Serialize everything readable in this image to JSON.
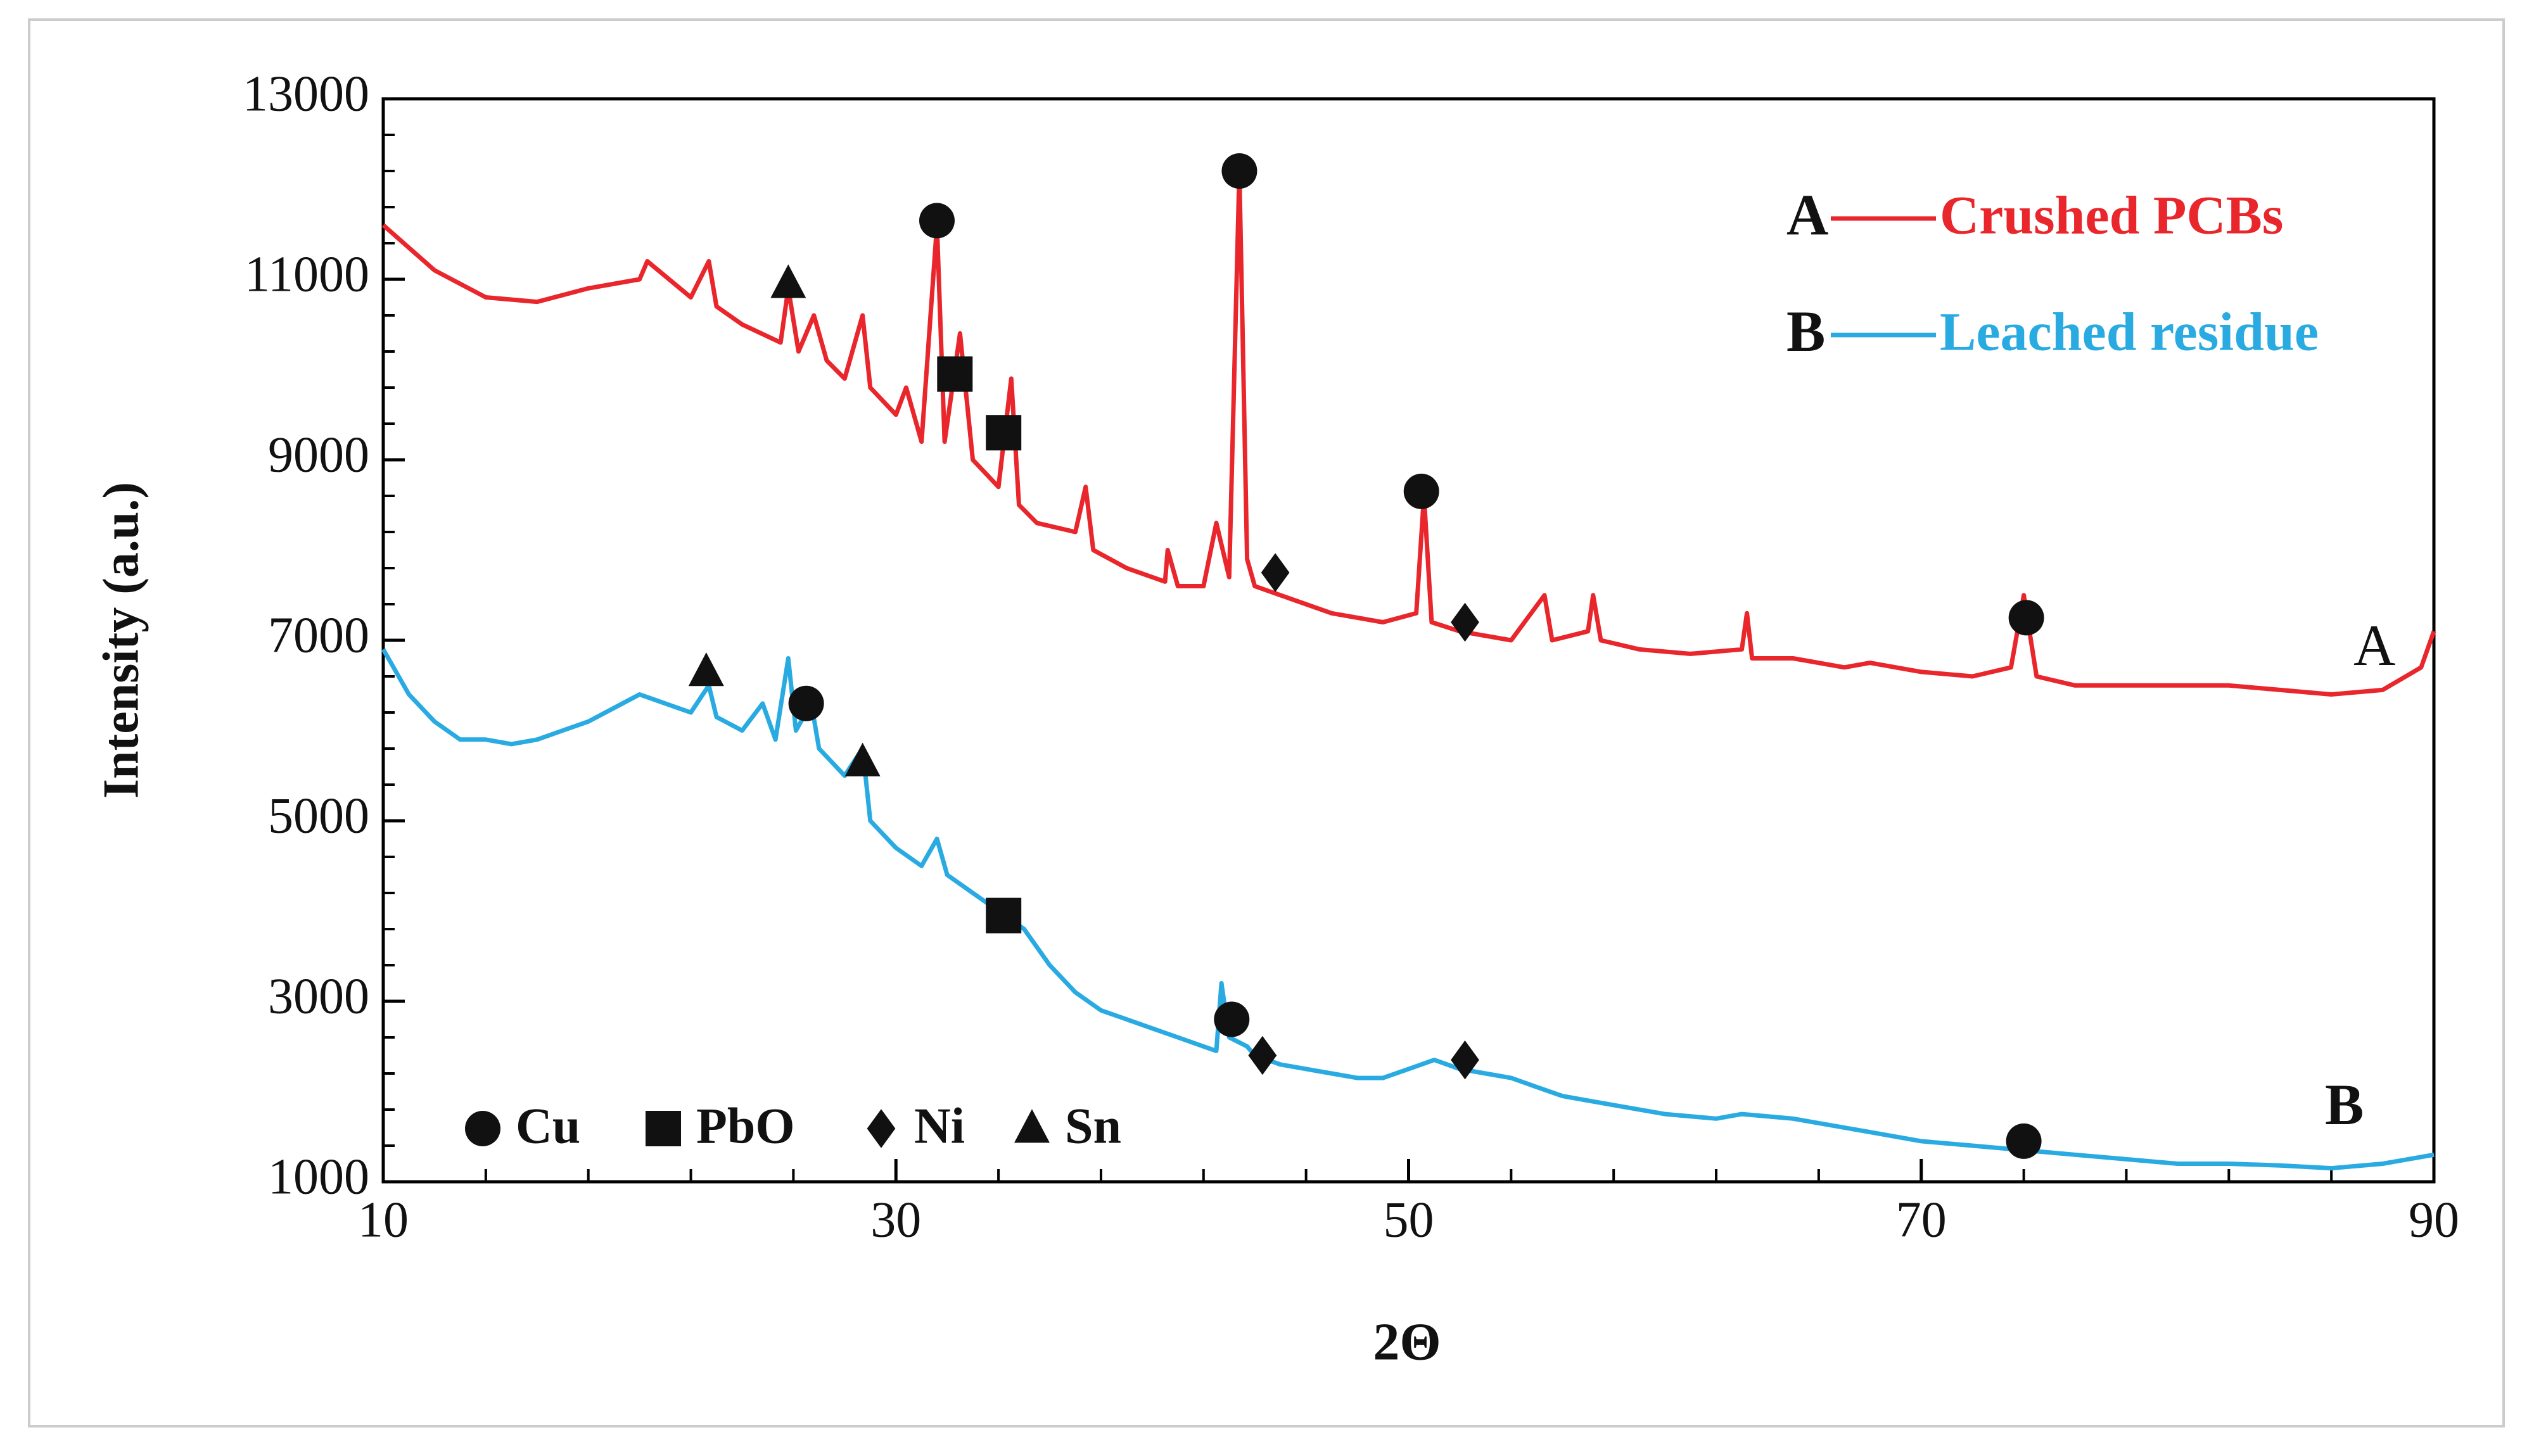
{
  "chart_data": {
    "type": "line",
    "x_label": "2Θ",
    "y_label": "Intensity (a.u.)",
    "xlim": [
      10,
      90
    ],
    "xticks": [
      10,
      30,
      50,
      70,
      90
    ],
    "x_minor_step": 4,
    "ylim": [
      1000,
      13000
    ],
    "yticks": [
      1000,
      3000,
      5000,
      7000,
      9000,
      11000,
      13000
    ],
    "y_minor_step": 400,
    "series": [
      {
        "name": "Crushed PCBs",
        "label": "A",
        "color": "#e8262b",
        "x": [
          10,
          12,
          14,
          16,
          18,
          20,
          20.3,
          22,
          22.7,
          23,
          24,
          25.5,
          25.8,
          26.2,
          26.8,
          27.3,
          28,
          28.7,
          29,
          30,
          30.4,
          31,
          31.6,
          31.9,
          32.5,
          33,
          34,
          34.5,
          34.8,
          35.5,
          37,
          37.4,
          37.7,
          39,
          40.5,
          40.6,
          41,
          42,
          42.5,
          43,
          43.4,
          43.7,
          44,
          45,
          47,
          49,
          50.3,
          50.6,
          50.9,
          52,
          54,
          55.3,
          55.6,
          57,
          57.2,
          57.5,
          59,
          61,
          63,
          63.2,
          63.4,
          65,
          67,
          68,
          70,
          72,
          73.5,
          74,
          74.5,
          76,
          78,
          80,
          82,
          84,
          86,
          88,
          89.5,
          90
        ],
        "values": [
          11600,
          11100,
          10800,
          10750,
          10900,
          11000,
          11200,
          10800,
          11200,
          10700,
          10500,
          10300,
          10900,
          10200,
          10600,
          10100,
          9900,
          10600,
          9800,
          9500,
          9800,
          9200,
          11600,
          9200,
          10400,
          9000,
          8700,
          9900,
          8500,
          8300,
          8200,
          8700,
          8000,
          7800,
          7650,
          8000,
          7600,
          7600,
          8300,
          7700,
          12200,
          7900,
          7600,
          7500,
          7300,
          7200,
          7300,
          8600,
          7200,
          7100,
          7000,
          7500,
          7000,
          7100,
          7500,
          7000,
          6900,
          6850,
          6900,
          7300,
          6800,
          6800,
          6700,
          6750,
          6650,
          6600,
          6700,
          7500,
          6600,
          6500,
          6500,
          6500,
          6500,
          6450,
          6400,
          6450,
          6700,
          7100
        ]
      },
      {
        "name": "Leached residue",
        "label": "B",
        "color": "#29abe2",
        "x": [
          10,
          11,
          12,
          13,
          14,
          15,
          16,
          17,
          18,
          19,
          20,
          21,
          22,
          22.7,
          23,
          24,
          24.8,
          25.3,
          25.8,
          26.1,
          26.7,
          27,
          28,
          28.7,
          29,
          30,
          31,
          31.6,
          32,
          33,
          34,
          35,
          36,
          37,
          38,
          39,
          40,
          41,
          42,
          42.5,
          42.7,
          43,
          43.7,
          44,
          45,
          46,
          47,
          48,
          49,
          50,
          51,
          52,
          53,
          54,
          55,
          56,
          57,
          58,
          60,
          62,
          63,
          65,
          66,
          68,
          70,
          72,
          74,
          76,
          78,
          80,
          82,
          84,
          86,
          88,
          90
        ],
        "values": [
          6900,
          6400,
          6100,
          5900,
          5900,
          5850,
          5900,
          6000,
          6100,
          6250,
          6400,
          6300,
          6200,
          6500,
          6150,
          6000,
          6300,
          5900,
          6800,
          6000,
          6300,
          5800,
          5500,
          5800,
          5000,
          4700,
          4500,
          4800,
          4400,
          4200,
          4000,
          3800,
          3400,
          3100,
          2900,
          2800,
          2700,
          2600,
          2500,
          2450,
          3200,
          2600,
          2500,
          2400,
          2300,
          2250,
          2200,
          2150,
          2150,
          2250,
          2350,
          2250,
          2200,
          2150,
          2050,
          1950,
          1900,
          1850,
          1750,
          1700,
          1750,
          1700,
          1650,
          1550,
          1450,
          1400,
          1350,
          1300,
          1250,
          1200,
          1200,
          1180,
          1150,
          1200,
          1300
        ]
      }
    ],
    "phases": [
      {
        "name": "Cu",
        "shape": "circle",
        "points": [
          [
            43.4,
            12200
          ],
          [
            50.5,
            8650
          ],
          [
            74.1,
            7250
          ],
          [
            31.6,
            11650
          ],
          [
            26.5,
            6300
          ],
          [
            43.1,
            2800
          ],
          [
            74,
            1450
          ]
        ]
      },
      {
        "name": "PbO",
        "shape": "square",
        "points": [
          [
            32.3,
            9950
          ],
          [
            34.2,
            9300
          ],
          [
            34.2,
            3950
          ]
        ]
      },
      {
        "name": "Ni",
        "shape": "diamond",
        "points": [
          [
            44.8,
            7750
          ],
          [
            52.2,
            7200
          ],
          [
            44.3,
            2400
          ],
          [
            52.2,
            2350
          ]
        ]
      },
      {
        "name": "Sn",
        "shape": "triangle",
        "points": [
          [
            25.8,
            10950
          ],
          [
            22.6,
            6650
          ],
          [
            28.7,
            5650
          ]
        ]
      }
    ]
  }
}
